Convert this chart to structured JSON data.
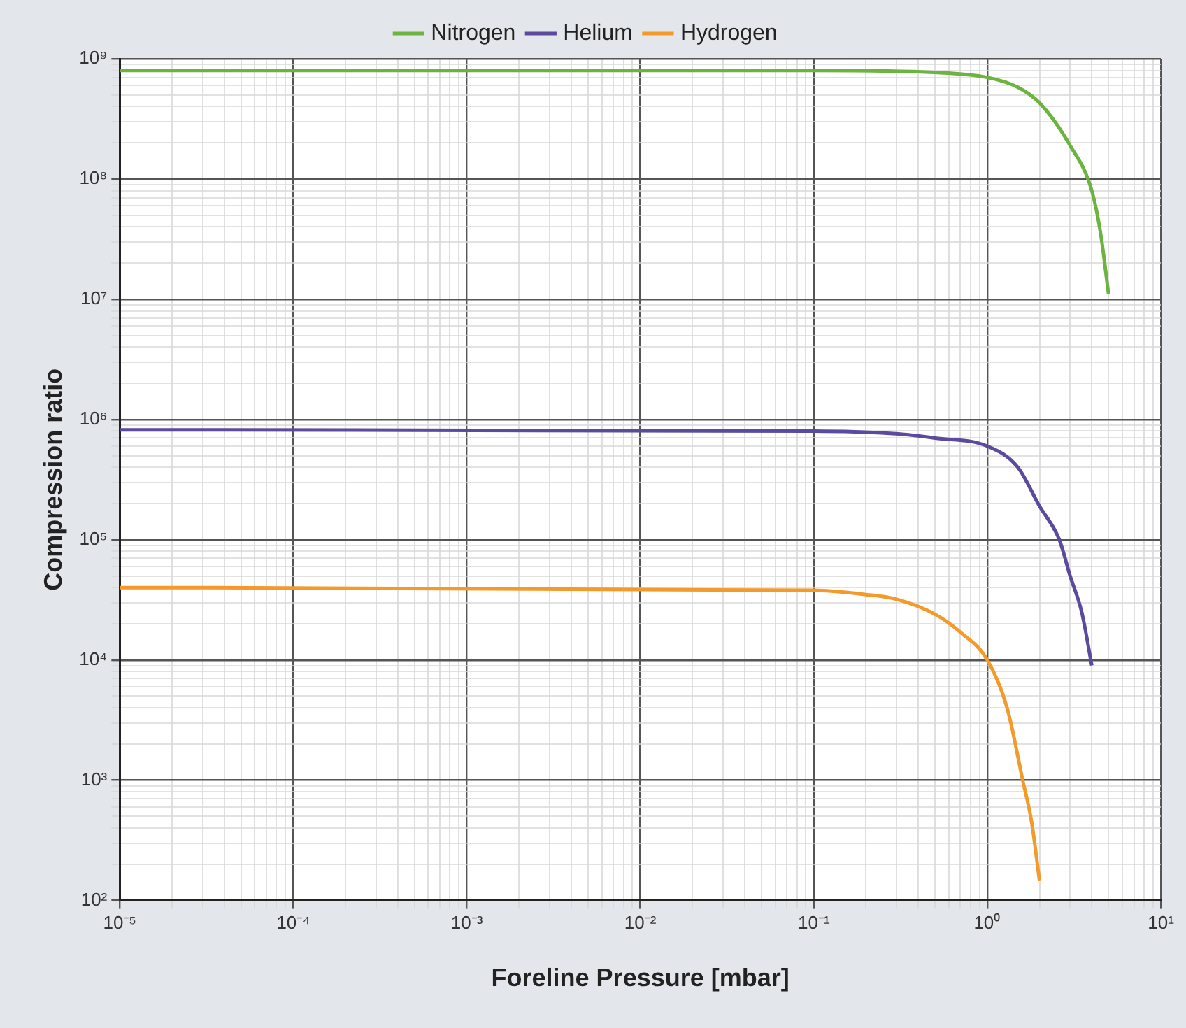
{
  "chart_data": {
    "type": "line",
    "xlabel": "Foreline Pressure [mbar]",
    "ylabel": "Compression ratio",
    "series": [
      {
        "name": "Nitrogen",
        "color": "#6db33f",
        "x": [
          1e-05,
          0.1,
          0.5,
          1,
          1.5,
          2,
          3,
          4,
          4.5,
          5
        ],
        "values": [
          800000000,
          800000000,
          770000000,
          700000000,
          580000000,
          430000000,
          190000000,
          80000000,
          35000000,
          11000000
        ]
      },
      {
        "name": "Helium",
        "color": "#5b4a9e",
        "x": [
          1e-05,
          0.1,
          0.3,
          0.5,
          1,
          1.5,
          2,
          2.6,
          3,
          3.5,
          4
        ],
        "values": [
          820000,
          800000,
          760000,
          700000,
          600000,
          400000,
          190000,
          100000,
          50000,
          25000,
          9000
        ]
      },
      {
        "name": "Hydrogen",
        "color": "#f39a2b",
        "x": [
          1e-05,
          0.1,
          0.2,
          0.3,
          0.5,
          0.7,
          1,
          1.3,
          1.6,
          1.8,
          2
        ],
        "values": [
          40000,
          38000,
          35000,
          32000,
          24000,
          17000,
          10000,
          4000,
          1000,
          450,
          145
        ]
      }
    ],
    "log": "xy",
    "grid": true,
    "legend": "top",
    "line_style": "solid",
    "marker": "none",
    "xlim": [
      1e-05,
      10
    ],
    "ylim": [
      100,
      1000000000
    ],
    "xticks": [
      {
        "value": 1e-05,
        "label": "10⁻⁵"
      },
      {
        "value": 2e-05,
        "label": null
      },
      {
        "value": 3e-05,
        "label": null
      },
      {
        "value": 4e-05,
        "label": null
      },
      {
        "value": 5e-05,
        "label": null
      },
      {
        "value": 6e-05,
        "label": null
      },
      {
        "value": 7e-05,
        "label": null
      },
      {
        "value": 8e-05,
        "label": null
      },
      {
        "value": 9e-05,
        "label": null
      },
      {
        "value": 0.0001,
        "label": "10⁻⁴"
      },
      {
        "value": 0.0002,
        "label": null
      },
      {
        "value": 0.0003,
        "label": null
      },
      {
        "value": 0.0004,
        "label": null
      },
      {
        "value": 0.0005,
        "label": null
      },
      {
        "value": 0.0006,
        "label": null
      },
      {
        "value": 0.0007,
        "label": null
      },
      {
        "value": 0.0008,
        "label": null
      },
      {
        "value": 0.0009,
        "label": null
      },
      {
        "value": 0.001,
        "label": "10⁻³"
      },
      {
        "value": 0.002,
        "label": null
      },
      {
        "value": 0.003,
        "label": null
      },
      {
        "value": 0.004,
        "label": null
      },
      {
        "value": 0.005,
        "label": null
      },
      {
        "value": 0.006,
        "label": null
      },
      {
        "value": 0.007,
        "label": null
      },
      {
        "value": 0.008,
        "label": null
      },
      {
        "value": 0.009,
        "label": null
      },
      {
        "value": 0.01,
        "label": "10⁻²"
      },
      {
        "value": 0.02,
        "label": null
      },
      {
        "value": 0.03,
        "label": null
      },
      {
        "value": 0.04,
        "label": null
      },
      {
        "value": 0.05,
        "label": null
      },
      {
        "value": 0.06,
        "label": null
      },
      {
        "value": 0.07,
        "label": null
      },
      {
        "value": 0.08,
        "label": null
      },
      {
        "value": 0.09,
        "label": null
      },
      {
        "value": 0.1,
        "label": "10⁻¹"
      },
      {
        "value": 0.2,
        "label": null
      },
      {
        "value": 0.3,
        "label": null
      },
      {
        "value": 0.4,
        "label": null
      },
      {
        "value": 0.5,
        "label": null
      },
      {
        "value": 0.6,
        "label": null
      },
      {
        "value": 0.7,
        "label": null
      },
      {
        "value": 0.8,
        "label": null
      },
      {
        "value": 0.9,
        "label": null
      },
      {
        "value": 1,
        "label": "10⁰"
      },
      {
        "value": 2,
        "label": null
      },
      {
        "value": 3,
        "label": null
      },
      {
        "value": 4,
        "label": null
      },
      {
        "value": 5,
        "label": null
      },
      {
        "value": 6,
        "label": null
      },
      {
        "value": 7,
        "label": null
      },
      {
        "value": 8,
        "label": null
      },
      {
        "value": 9,
        "label": null
      },
      {
        "value": 10,
        "label": "10¹"
      }
    ],
    "yticks": [
      {
        "value": 100,
        "label": "10²"
      },
      {
        "value": 200,
        "label": null
      },
      {
        "value": 300,
        "label": null
      },
      {
        "value": 400,
        "label": null
      },
      {
        "value": 500,
        "label": null
      },
      {
        "value": 600,
        "label": null
      },
      {
        "value": 700,
        "label": null
      },
      {
        "value": 800,
        "label": null
      },
      {
        "value": 900,
        "label": null
      },
      {
        "value": 1000,
        "label": "10³"
      },
      {
        "value": 2000,
        "label": null
      },
      {
        "value": 3000,
        "label": null
      },
      {
        "value": 4000,
        "label": null
      },
      {
        "value": 5000,
        "label": null
      },
      {
        "value": 6000,
        "label": null
      },
      {
        "value": 7000,
        "label": null
      },
      {
        "value": 8000,
        "label": null
      },
      {
        "value": 9000,
        "label": null
      },
      {
        "value": 10000,
        "label": "10⁴"
      },
      {
        "value": 20000,
        "label": null
      },
      {
        "value": 30000,
        "label": null
      },
      {
        "value": 40000,
        "label": null
      },
      {
        "value": 50000,
        "label": null
      },
      {
        "value": 60000,
        "label": null
      },
      {
        "value": 70000,
        "label": null
      },
      {
        "value": 80000,
        "label": null
      },
      {
        "value": 90000,
        "label": null
      },
      {
        "value": 100000,
        "label": "10⁵"
      },
      {
        "value": 200000,
        "label": null
      },
      {
        "value": 300000,
        "label": null
      },
      {
        "value": 400000,
        "label": null
      },
      {
        "value": 500000,
        "label": null
      },
      {
        "value": 600000,
        "label": null
      },
      {
        "value": 700000,
        "label": null
      },
      {
        "value": 800000,
        "label": null
      },
      {
        "value": 900000,
        "label": null
      },
      {
        "value": 1000000,
        "label": "10⁶"
      },
      {
        "value": 2000000,
        "label": null
      },
      {
        "value": 3000000,
        "label": null
      },
      {
        "value": 4000000,
        "label": null
      },
      {
        "value": 5000000,
        "label": null
      },
      {
        "value": 6000000,
        "label": null
      },
      {
        "value": 7000000,
        "label": null
      },
      {
        "value": 8000000,
        "label": null
      },
      {
        "value": 9000000,
        "label": null
      },
      {
        "value": 10000000,
        "label": "10⁷"
      },
      {
        "value": 20000000,
        "label": null
      },
      {
        "value": 30000000,
        "label": null
      },
      {
        "value": 40000000,
        "label": null
      },
      {
        "value": 50000000,
        "label": null
      },
      {
        "value": 60000000,
        "label": null
      },
      {
        "value": 70000000,
        "label": null
      },
      {
        "value": 80000000,
        "label": null
      },
      {
        "value": 90000000,
        "label": null
      },
      {
        "value": 100000000,
        "label": "10⁸"
      },
      {
        "value": 200000000,
        "label": null
      },
      {
        "value": 300000000,
        "label": null
      },
      {
        "value": 400000000,
        "label": null
      },
      {
        "value": 500000000,
        "label": null
      },
      {
        "value": 600000000,
        "label": null
      },
      {
        "value": 700000000,
        "label": null
      },
      {
        "value": 800000000,
        "label": null
      },
      {
        "value": 900000000,
        "label": null
      },
      {
        "value": 1000000000,
        "label": "10⁹"
      }
    ]
  }
}
